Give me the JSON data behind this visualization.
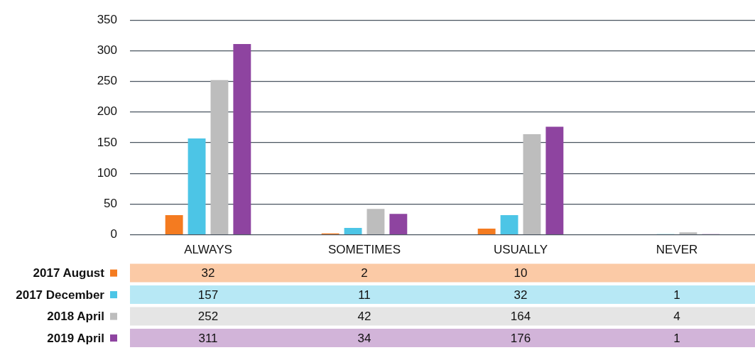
{
  "chart_data": {
    "type": "bar",
    "categories": [
      "ALWAYS",
      "SOMETIMES",
      "USUALLY",
      "NEVER"
    ],
    "series": [
      {
        "name": "2017 August",
        "color": "#f47b20",
        "values": [
          32,
          2,
          10,
          null
        ]
      },
      {
        "name": "2017 December",
        "color": "#4cc5e6",
        "values": [
          157,
          11,
          32,
          1
        ]
      },
      {
        "name": "2018 April",
        "color": "#bdbdbd",
        "values": [
          252,
          42,
          164,
          4
        ]
      },
      {
        "name": "2019 April",
        "color": "#8e44a0",
        "values": [
          311,
          34,
          176,
          1
        ]
      }
    ],
    "ylim": [
      0,
      350
    ],
    "yticks": [
      0,
      50,
      100,
      150,
      200,
      250,
      300,
      350
    ],
    "grid": "y",
    "legend": "bottom left",
    "data_labels": true
  }
}
